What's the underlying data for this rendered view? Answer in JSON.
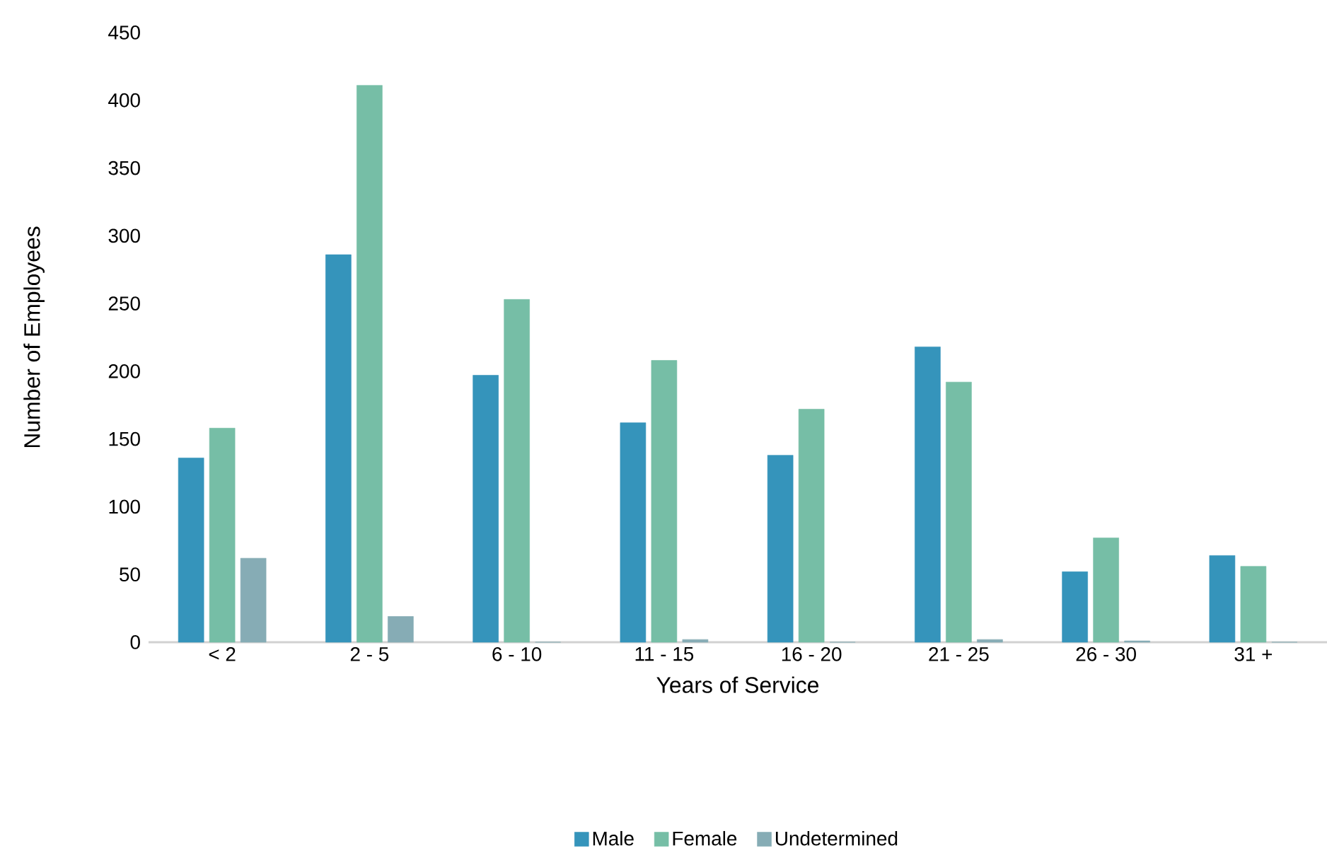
{
  "chart_data": {
    "type": "bar",
    "xlabel": "Years of Service",
    "ylabel": "Number of Employees",
    "categories": [
      "< 2",
      "2 - 5",
      "6 - 10",
      "11 - 15",
      "16 - 20",
      "21 - 25",
      "26 - 30",
      "31 +"
    ],
    "series": [
      {
        "name": "Male",
        "color": "#3594bb",
        "values": [
          136,
          286,
          197,
          162,
          138,
          218,
          52,
          64
        ]
      },
      {
        "name": "Female",
        "color": "#76bea6",
        "values": [
          158,
          411,
          253,
          208,
          172,
          192,
          77,
          56
        ]
      },
      {
        "name": "Undetermined",
        "color": "#86acb5",
        "values": [
          62,
          19,
          0,
          2,
          0,
          2,
          1,
          0
        ]
      }
    ],
    "ylim": [
      0,
      450
    ],
    "yticks": [
      0,
      50,
      100,
      150,
      200,
      250,
      300,
      350,
      400,
      450
    ],
    "legend": "bottom"
  }
}
